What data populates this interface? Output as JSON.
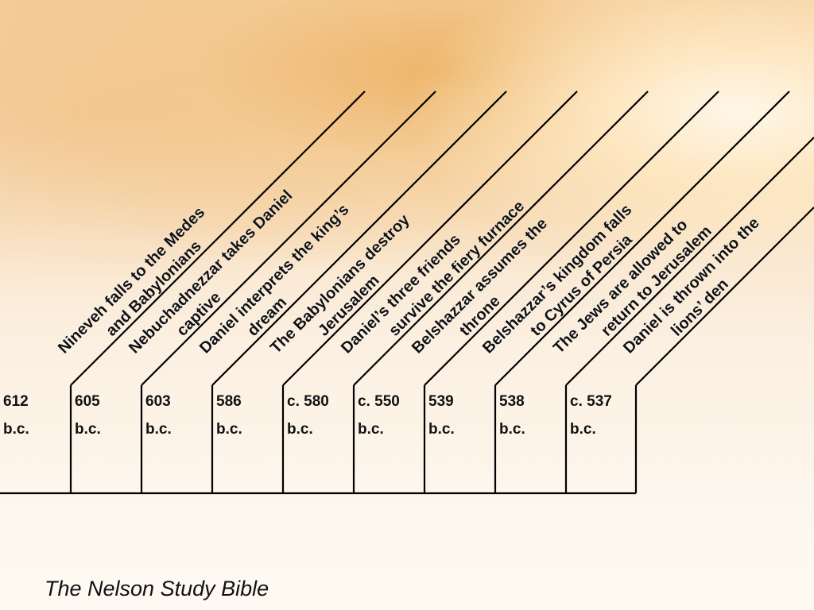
{
  "events": [
    {
      "date_line1": "612",
      "date_line2": "b.c.",
      "label": "Nineveh falls to the Medes and Babylonians"
    },
    {
      "date_line1": "605",
      "date_line2": "b.c.",
      "label": "Nebuchadnezzar takes Daniel captive"
    },
    {
      "date_line1": "603",
      "date_line2": "b.c.",
      "label": "Daniel interprets the king’s dream"
    },
    {
      "date_line1": "586",
      "date_line2": "b.c.",
      "label": "The Babylonians destroy Jerusalem"
    },
    {
      "date_line1": "c. 580",
      "date_line2": "b.c.",
      "label": "Daniel’s three friends survive the fiery furnace"
    },
    {
      "date_line1": "c. 550",
      "date_line2": "b.c.",
      "label": "Belshazzar assumes the throne"
    },
    {
      "date_line1": "539",
      "date_line2": "b.c.",
      "label": "Belshazzar’s kingdom falls to Cyrus of Persia"
    },
    {
      "date_line1": "538",
      "date_line2": "b.c.",
      "label": "The Jews are allowed to return to Jerusalem"
    },
    {
      "date_line1": "c. 537",
      "date_line2": "b.c.",
      "label": "Daniel is thrown into the lions’ den"
    }
  ],
  "source": "The Nelson Study Bible"
}
